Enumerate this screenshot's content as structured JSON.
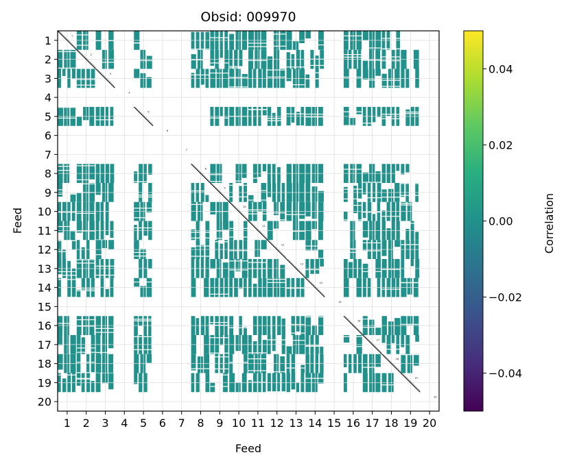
{
  "chart_data": {
    "type": "heatmap",
    "title": "Obsid: 009970",
    "xlabel": "Feed",
    "ylabel": "Feed",
    "x_ticks": [
      "1",
      "2",
      "3",
      "4",
      "5",
      "6",
      "7",
      "8",
      "9",
      "10",
      "11",
      "12",
      "13",
      "14",
      "15",
      "16",
      "17",
      "18",
      "19",
      "20"
    ],
    "y_ticks": [
      "1",
      "2",
      "3",
      "4",
      "5",
      "6",
      "7",
      "8",
      "9",
      "10",
      "11",
      "12",
      "13",
      "14",
      "15",
      "16",
      "17",
      "18",
      "19",
      "20"
    ],
    "feed_range": [
      0.5,
      20.5
    ],
    "grid": true,
    "colorbar": {
      "label": "Correlation",
      "min": -0.05,
      "max": 0.05,
      "ticks": [
        -0.04,
        -0.02,
        0.0,
        0.02,
        0.04
      ],
      "tick_labels": [
        "−0.04",
        "−0.02",
        "0.00",
        "0.02",
        "0.04"
      ],
      "colormap": "viridis"
    },
    "colors": {
      "offdiag_value_color": "#21918c",
      "diagonal_color": "#000000",
      "grid_color": "#dddddd"
    },
    "off_diagonal_value": 0.0,
    "populated_feeds": [
      1,
      2,
      3,
      5,
      8,
      9,
      10,
      11,
      12,
      13,
      14,
      16,
      17,
      18,
      19
    ],
    "empty_feeds": [
      4,
      6,
      7,
      15,
      20
    ],
    "diagonal_labels": [
      "1",
      "2",
      "3",
      "4",
      "5",
      "6",
      "7",
      "8",
      "9",
      "10",
      "11",
      "12",
      "13",
      "14",
      "15",
      "16",
      "17",
      "18",
      "19",
      "20"
    ]
  }
}
